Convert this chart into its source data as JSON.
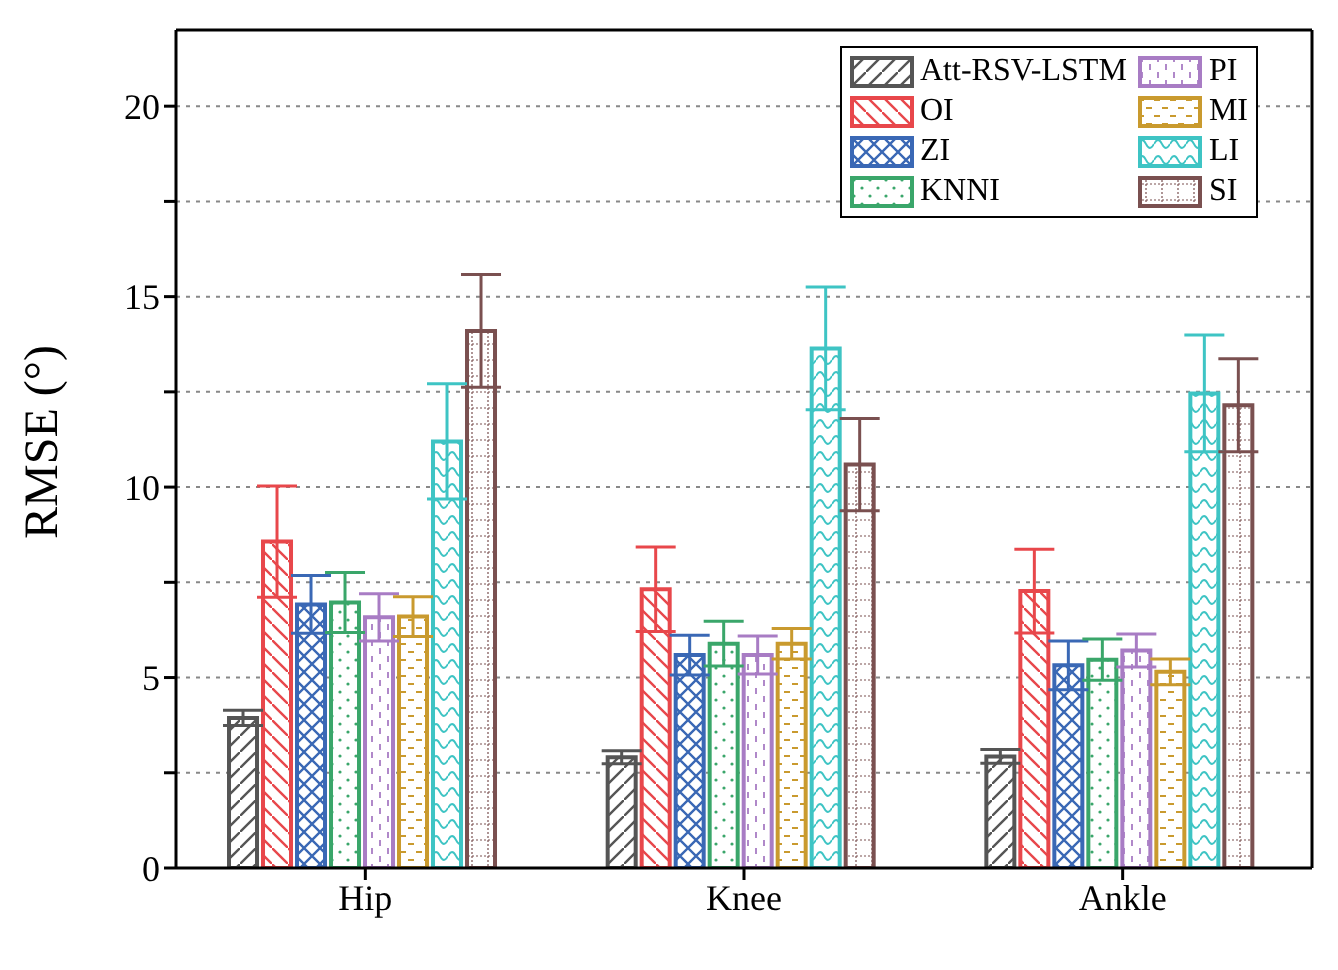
{
  "chart_data": {
    "type": "bar",
    "ylabel": "RMSE (°)",
    "categories": [
      "Hip",
      "Knee",
      "Ankle"
    ],
    "series": [
      {
        "name": "Att-RSV-LSTM",
        "color": "#555555",
        "values": [
          3.94,
          2.91,
          2.93
        ],
        "errors": [
          0.2,
          0.17,
          0.18
        ]
      },
      {
        "name": "OI",
        "color": "#e8474b",
        "values": [
          8.57,
          7.32,
          7.27
        ],
        "errors": [
          1.46,
          1.11,
          1.1
        ]
      },
      {
        "name": "ZI",
        "color": "#3a68b5",
        "values": [
          6.92,
          5.59,
          5.32
        ],
        "errors": [
          0.76,
          0.52,
          0.64
        ]
      },
      {
        "name": "KNNI",
        "color": "#3aa66a",
        "values": [
          6.97,
          5.89,
          5.47
        ],
        "errors": [
          0.79,
          0.59,
          0.54
        ]
      },
      {
        "name": "PI",
        "color": "#a87cc4",
        "values": [
          6.58,
          5.59,
          5.71
        ],
        "errors": [
          0.62,
          0.5,
          0.43
        ]
      },
      {
        "name": "MI",
        "color": "#c99a2e",
        "values": [
          6.6,
          5.89,
          5.15
        ],
        "errors": [
          0.52,
          0.4,
          0.34
        ]
      },
      {
        "name": "LI",
        "color": "#3ec4c4",
        "values": [
          11.2,
          13.64,
          12.46
        ],
        "errors": [
          1.51,
          1.61,
          1.53
        ]
      },
      {
        "name": "SI",
        "color": "#7a5050",
        "values": [
          14.1,
          10.59,
          12.15
        ],
        "errors": [
          1.48,
          1.21,
          1.22
        ]
      }
    ],
    "ylim": [
      0,
      22
    ],
    "yticks": [
      0,
      {
        "value": 2.5,
        "label": null
      },
      5,
      {
        "value": 7.5,
        "label": null
      },
      10,
      {
        "value": 12.5,
        "label": null
      },
      15,
      {
        "value": 17.5,
        "label": null
      },
      20
    ],
    "grid": "y",
    "legend": "top right"
  }
}
